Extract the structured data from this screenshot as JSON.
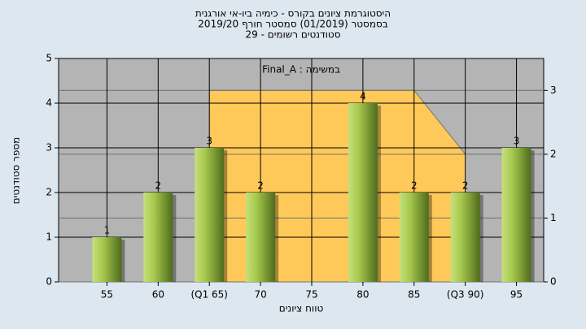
{
  "chart_data": {
    "type": "bar",
    "title": [
      "היסטוגרמת ציונים בקורס - כימיה ביו-אי אורגנית",
      "בסמסטר  (01/2019)  סמסטר חורף 2019/20",
      "סטודנטים רשומים - 29"
    ],
    "annotation": "במשימה : Final_A",
    "x_label": "טווח ציונים",
    "y_label": "מספר סטודנטים",
    "categories": [
      "55",
      "60",
      "(Q1 65)",
      "70",
      "75",
      "80",
      "85",
      "(Q3 90)",
      "95"
    ],
    "series": [
      {
        "type": "bar",
        "color": "#8fb43a",
        "values": [
          1,
          2,
          3,
          2,
          0,
          4,
          2,
          2,
          3
        ]
      },
      {
        "type": "area",
        "axis": "y2",
        "color": "#ffc95a",
        "values": [
          null,
          null,
          3,
          3,
          3,
          3,
          3,
          2,
          null
        ]
      }
    ],
    "ylim": [
      0,
      5
    ],
    "yticks": [
      0,
      1,
      2,
      3,
      4,
      5
    ],
    "y2lim": [
      0,
      3.5
    ],
    "y2ticks": [
      0,
      1,
      2,
      3
    ],
    "grid": true
  }
}
